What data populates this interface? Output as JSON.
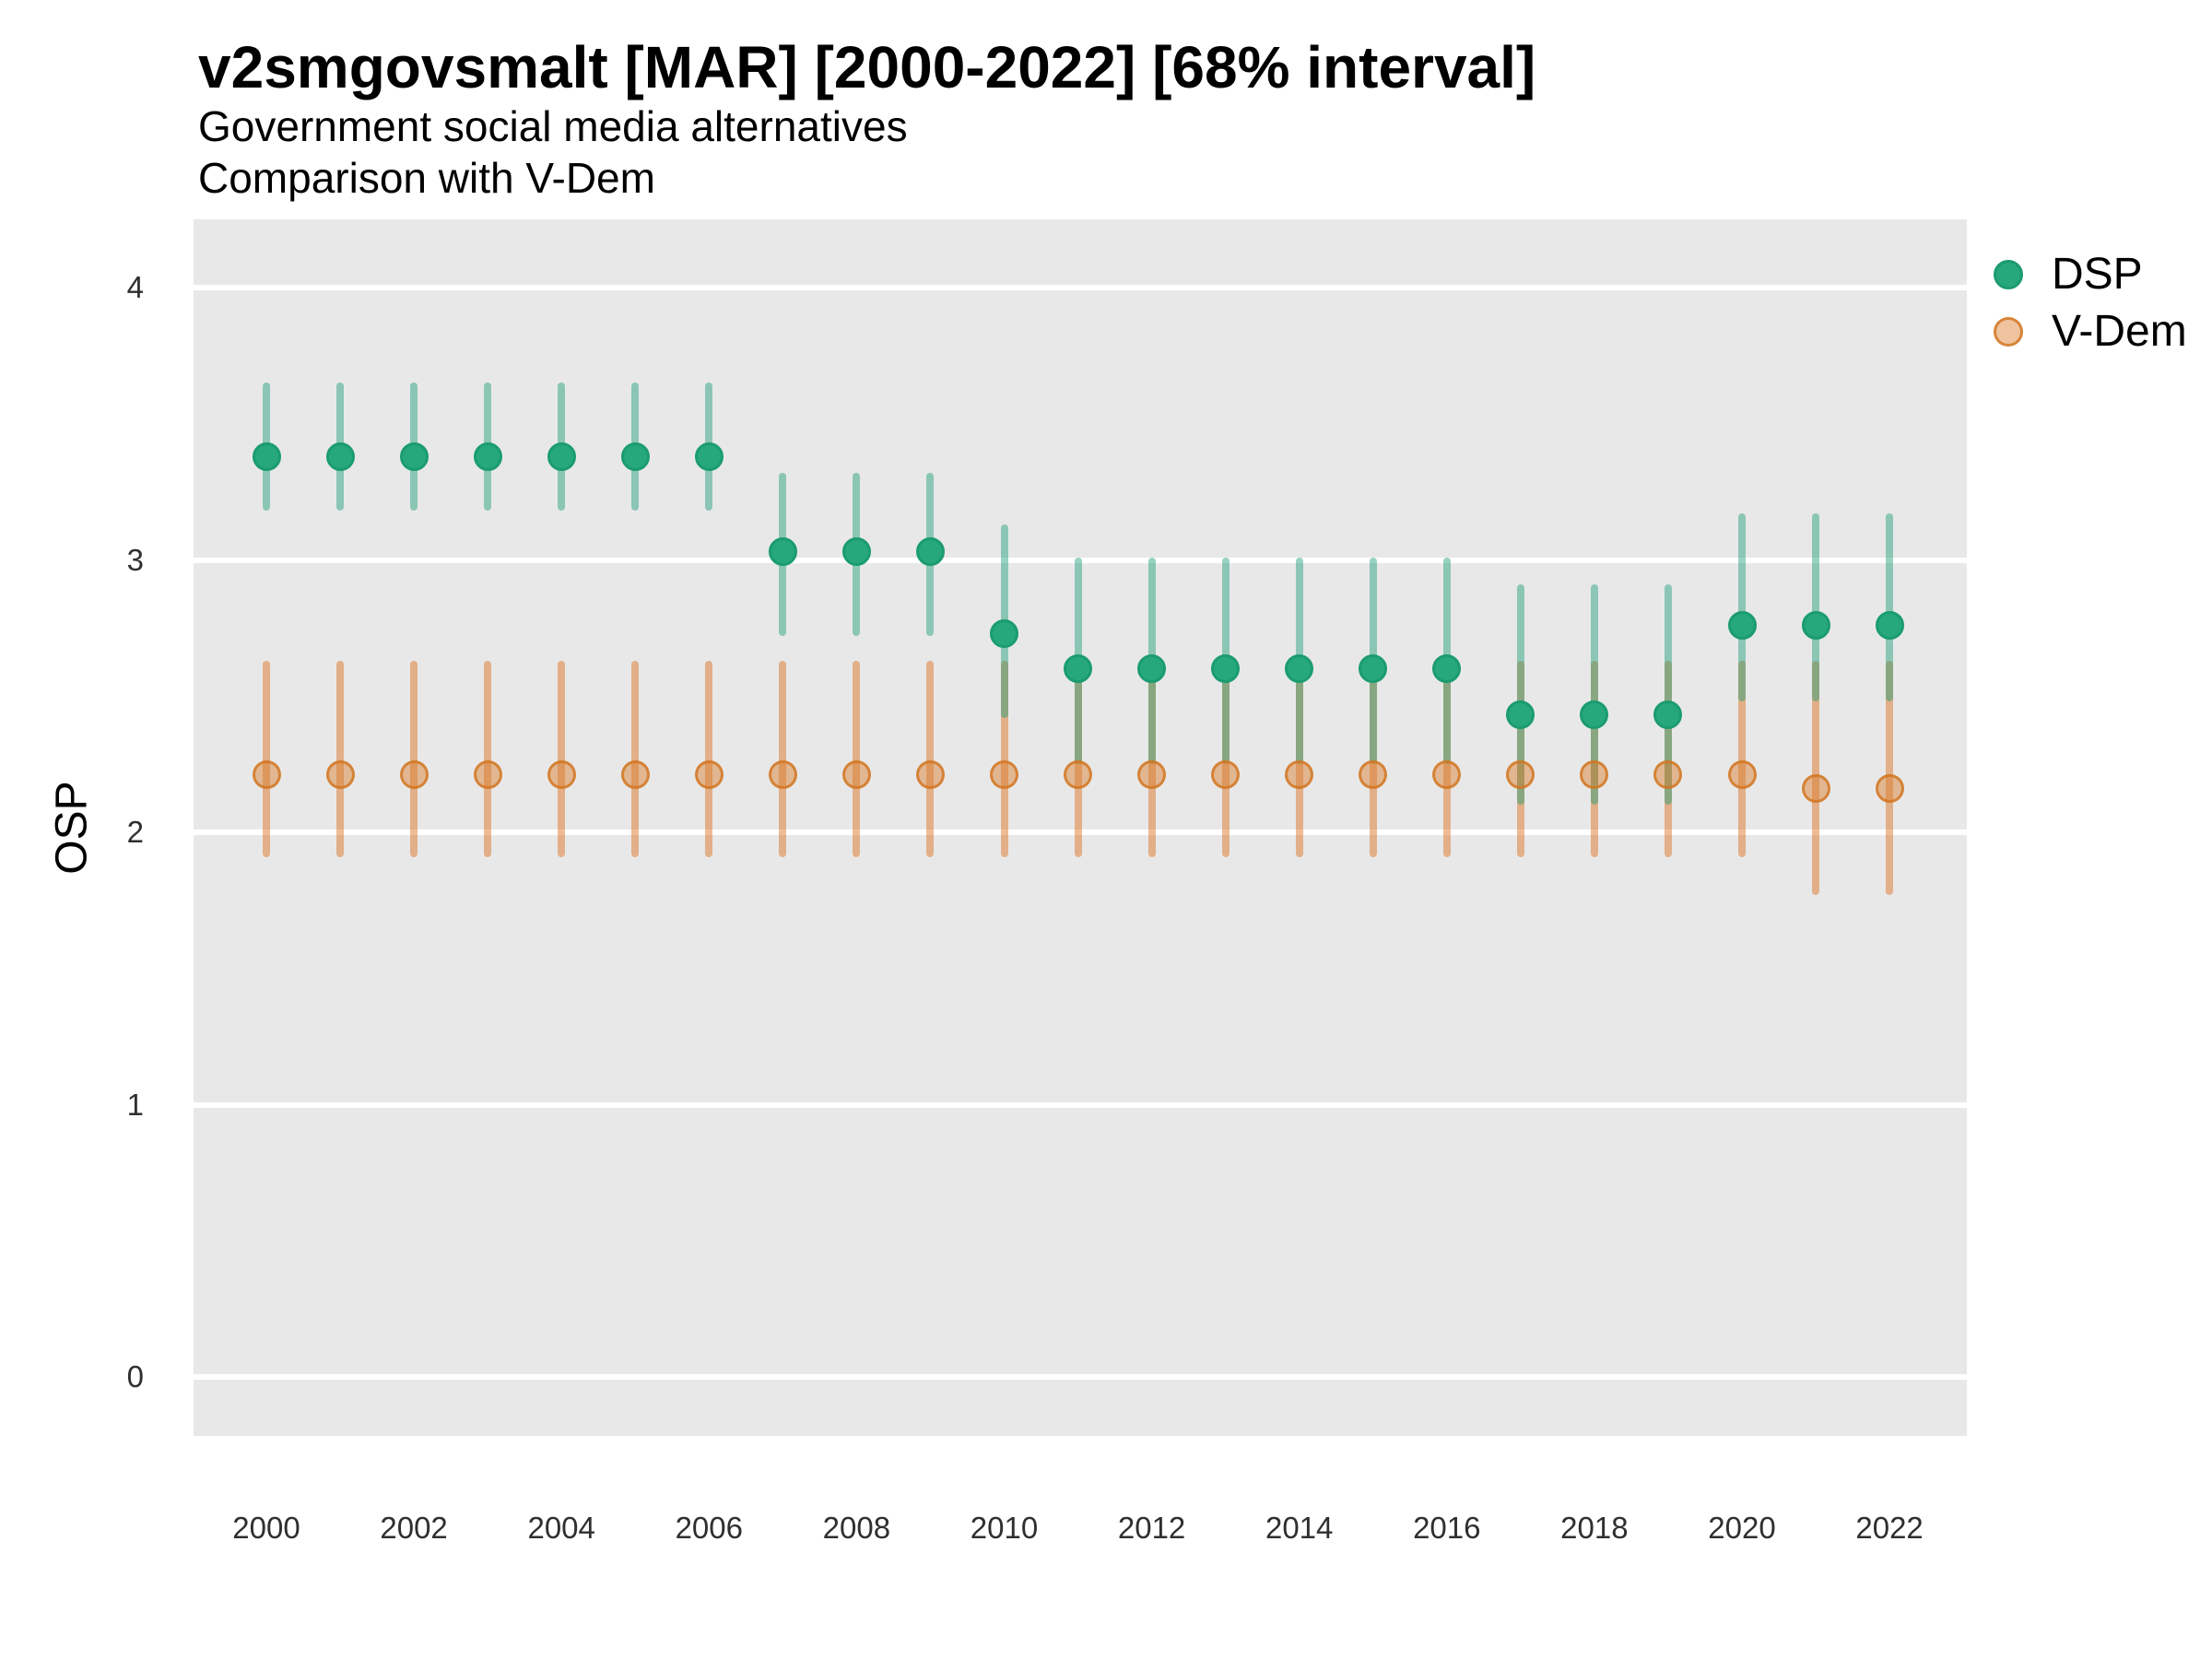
{
  "header": {
    "title": "v2smgovsmalt [MAR] [2000-2022] [68% interval]",
    "subtitle1": "Government social media alternatives",
    "subtitle2": "Comparison with V-Dem"
  },
  "chart_data": {
    "type": "pointrange",
    "interval_label": "68% interval",
    "ylabel": "OSP",
    "x": [
      2000,
      2001,
      2002,
      2003,
      2004,
      2005,
      2006,
      2007,
      2008,
      2009,
      2010,
      2011,
      2012,
      2013,
      2014,
      2015,
      2016,
      2017,
      2018,
      2019,
      2020,
      2021,
      2022
    ],
    "xticks": [
      2000,
      2002,
      2004,
      2006,
      2008,
      2010,
      2012,
      2014,
      2016,
      2018,
      2020,
      2022
    ],
    "yticks": [
      0,
      1,
      2,
      3,
      4
    ],
    "ylim": [
      -0.25,
      4.27
    ],
    "grid": "white horizontal major gridlines on gray panel",
    "legend_position": "right",
    "panel_bg": "#e8e8e8",
    "series": [
      {
        "name": "DSP",
        "color": "#1b9e77",
        "point_fill": "#27a87c",
        "point_stroke": "#1b9c70",
        "est": [
          3.38,
          3.38,
          3.38,
          3.38,
          3.38,
          3.38,
          3.38,
          3.03,
          3.03,
          3.03,
          2.73,
          2.6,
          2.6,
          2.6,
          2.6,
          2.6,
          2.6,
          2.43,
          2.43,
          2.43,
          2.76,
          2.76,
          2.76
        ],
        "lo": [
          3.18,
          3.18,
          3.18,
          3.18,
          3.18,
          3.18,
          3.18,
          2.72,
          2.72,
          2.72,
          2.42,
          2.25,
          2.25,
          2.25,
          2.25,
          2.25,
          2.25,
          2.1,
          2.1,
          2.1,
          2.48,
          2.48,
          2.48
        ],
        "hi": [
          3.65,
          3.65,
          3.65,
          3.65,
          3.65,
          3.65,
          3.65,
          3.32,
          3.32,
          3.32,
          3.13,
          3.01,
          3.01,
          3.01,
          3.01,
          3.01,
          3.01,
          2.91,
          2.91,
          2.91,
          3.17,
          3.17,
          3.17
        ]
      },
      {
        "name": "V-Dem",
        "color": "#d95f02",
        "point_fill": "rgba(217,123,41,0.45)",
        "point_stroke": "rgba(211,118,34,0.82)",
        "est": [
          2.21,
          2.21,
          2.21,
          2.21,
          2.21,
          2.21,
          2.21,
          2.21,
          2.21,
          2.21,
          2.21,
          2.21,
          2.21,
          2.21,
          2.21,
          2.21,
          2.21,
          2.21,
          2.21,
          2.21,
          2.21,
          2.16,
          2.16
        ],
        "lo": [
          1.91,
          1.91,
          1.91,
          1.91,
          1.91,
          1.91,
          1.91,
          1.91,
          1.91,
          1.91,
          1.91,
          1.91,
          1.91,
          1.91,
          1.91,
          1.91,
          1.91,
          1.91,
          1.91,
          1.91,
          1.91,
          1.77,
          1.77
        ],
        "hi": [
          2.63,
          2.63,
          2.63,
          2.63,
          2.63,
          2.63,
          2.63,
          2.63,
          2.63,
          2.63,
          2.63,
          2.63,
          2.63,
          2.63,
          2.63,
          2.63,
          2.63,
          2.63,
          2.63,
          2.63,
          2.63,
          2.63,
          2.63
        ]
      }
    ]
  }
}
